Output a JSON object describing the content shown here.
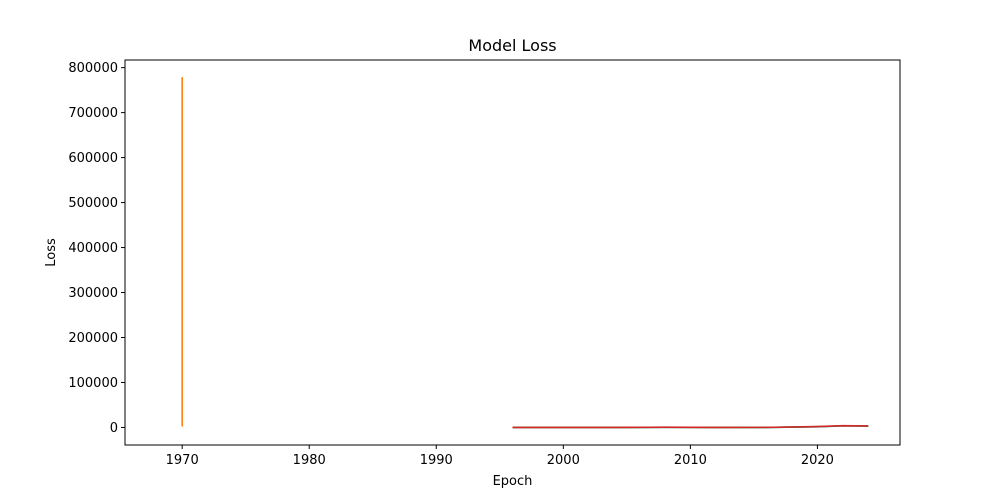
{
  "chart_data": {
    "type": "line",
    "title": "Model Loss",
    "xlabel": "Epoch",
    "ylabel": "Loss",
    "xlim": [
      1965.5,
      2026.5
    ],
    "ylim": [
      -39000,
      817000
    ],
    "xticks": [
      1970,
      1980,
      1990,
      2000,
      2010,
      2020
    ],
    "yticks": [
      0,
      100000,
      200000,
      300000,
      400000,
      500000,
      600000,
      700000,
      800000
    ],
    "grid": false,
    "legend": "none",
    "series": [
      {
        "color": "#ff7f0e",
        "x": [
          1970.0,
          1970.0,
          1970.0,
          1970.0
        ],
        "y": [
          779000,
          200000,
          20000,
          2000
        ]
      },
      {
        "color": "#1f77b4",
        "x": [
          1996,
          2000,
          2004,
          2008,
          2012,
          2016,
          2020,
          2022,
          2024
        ],
        "y": [
          0,
          0,
          0,
          200,
          0,
          0,
          1500,
          3500,
          3000
        ]
      },
      {
        "color": "#2ca02c",
        "x": [
          1996,
          2000,
          2004,
          2008,
          2012,
          2016,
          2020,
          2022,
          2024
        ],
        "y": [
          0,
          0,
          0,
          300,
          0,
          0,
          1800,
          3800,
          3200
        ]
      },
      {
        "color": "#d62728",
        "x": [
          1996,
          2000,
          2004,
          2008,
          2012,
          2016,
          2020,
          2022,
          2024
        ],
        "y": [
          0,
          0,
          0,
          500,
          0,
          200,
          2000,
          4000,
          3400
        ]
      }
    ]
  }
}
